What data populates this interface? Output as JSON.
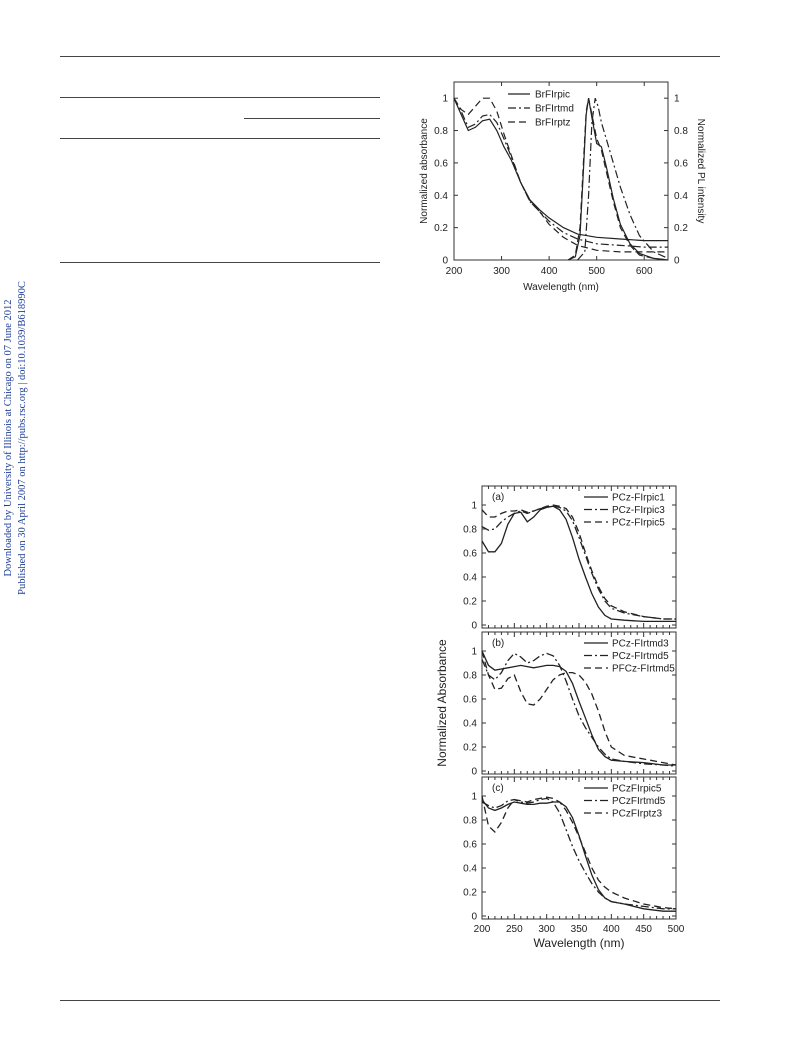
{
  "sidebar": {
    "line1": "Downloaded by University of Illinois at Chicago on 07 June 2012",
    "line2": "Published on 30 April 2007 on http://pubs.rsc.org | doi:10.1039/B618990C"
  },
  "chart_data": [
    {
      "type": "line",
      "title": "",
      "xlabel": "Wavelength (nm)",
      "ylabel": "Normalized absorbance",
      "y2label": "Normalized PL intensity",
      "xlim": [
        200,
        650
      ],
      "ylim": [
        0,
        1.1
      ],
      "xticks": [
        "200",
        "300",
        "400",
        "500",
        "600"
      ],
      "yticks": [
        "0",
        "0.2",
        "0.4",
        "0.6",
        "0.8",
        "1"
      ],
      "y2ticks": [
        "0",
        "0.2",
        "0.4",
        "0.6",
        "0.8",
        "1"
      ],
      "legend_position": "top-center",
      "grid": false,
      "series": [
        {
          "name": "BrFIrpic",
          "dash": "solid",
          "kind": "absorption",
          "x": [
            200,
            215,
            230,
            245,
            260,
            275,
            290,
            305,
            320,
            340,
            360,
            380,
            400,
            430,
            460,
            500,
            550,
            600,
            650
          ],
          "y": [
            1.0,
            0.9,
            0.8,
            0.82,
            0.86,
            0.87,
            0.8,
            0.7,
            0.62,
            0.48,
            0.37,
            0.31,
            0.26,
            0.2,
            0.16,
            0.14,
            0.13,
            0.12,
            0.12
          ]
        },
        {
          "name": "BrFIrtmd",
          "dash": "dashdot",
          "kind": "absorption",
          "x": [
            200,
            215,
            230,
            245,
            260,
            275,
            290,
            305,
            320,
            340,
            360,
            380,
            400,
            430,
            460,
            500,
            550,
            600,
            650
          ],
          "y": [
            1.0,
            0.92,
            0.82,
            0.84,
            0.89,
            0.9,
            0.85,
            0.75,
            0.64,
            0.48,
            0.36,
            0.3,
            0.24,
            0.17,
            0.13,
            0.1,
            0.09,
            0.08,
            0.08
          ]
        },
        {
          "name": "BrFIrptz",
          "dash": "dash",
          "kind": "absorption",
          "x": [
            200,
            215,
            230,
            245,
            260,
            275,
            290,
            305,
            320,
            340,
            360,
            380,
            400,
            430,
            460,
            500,
            550,
            600,
            650
          ],
          "y": [
            1.0,
            0.93,
            0.9,
            0.95,
            1.0,
            1.0,
            0.92,
            0.78,
            0.65,
            0.48,
            0.36,
            0.3,
            0.22,
            0.14,
            0.09,
            0.06,
            0.05,
            0.05,
            0.05
          ]
        },
        {
          "name": "BrFIrpic",
          "dash": "solid",
          "kind": "emission",
          "x": [
            440,
            455,
            465,
            472,
            478,
            483,
            490,
            500,
            510,
            520,
            535,
            550,
            570,
            590,
            620,
            650
          ],
          "y": [
            0,
            0.02,
            0.15,
            0.55,
            0.9,
            1.0,
            0.88,
            0.72,
            0.7,
            0.58,
            0.38,
            0.22,
            0.1,
            0.04,
            0.01,
            0
          ]
        },
        {
          "name": "BrFIrtmd",
          "dash": "dashdot",
          "kind": "emission",
          "x": [
            460,
            475,
            483,
            490,
            497,
            503,
            510,
            520,
            535,
            550,
            570,
            590,
            620,
            650
          ],
          "y": [
            0,
            0.05,
            0.4,
            0.85,
            1.0,
            0.95,
            0.85,
            0.75,
            0.6,
            0.45,
            0.28,
            0.15,
            0.05,
            0.01
          ]
        },
        {
          "name": "BrFIrptz",
          "dash": "dash",
          "kind": "emission",
          "x": [
            440,
            455,
            465,
            472,
            478,
            483,
            490,
            500,
            510,
            520,
            535,
            550,
            570,
            590,
            620,
            650
          ],
          "y": [
            0,
            0.03,
            0.2,
            0.6,
            0.92,
            1.0,
            0.9,
            0.75,
            0.68,
            0.55,
            0.36,
            0.2,
            0.09,
            0.03,
            0.01,
            0
          ]
        }
      ]
    },
    {
      "type": "line",
      "title": "",
      "panels": [
        {
          "label": "(a)",
          "ylabel": "",
          "xlabel": "",
          "xlim": [
            200,
            500
          ],
          "ylim": [
            0,
            1.1
          ],
          "yticks": [
            "0",
            "0.2",
            "0.4",
            "0.6",
            "0.8",
            "1"
          ],
          "series": [
            {
              "name": "PCz-FIrpic1",
              "dash": "solid",
              "x": [
                200,
                210,
                220,
                230,
                240,
                250,
                260,
                270,
                280,
                290,
                300,
                310,
                320,
                330,
                340,
                350,
                360,
                370,
                380,
                390,
                400,
                420,
                450,
                480,
                500
              ],
              "y": [
                0.7,
                0.61,
                0.61,
                0.68,
                0.84,
                0.93,
                0.94,
                0.86,
                0.9,
                0.96,
                0.98,
                0.99,
                0.96,
                0.88,
                0.73,
                0.55,
                0.4,
                0.26,
                0.15,
                0.08,
                0.05,
                0.04,
                0.03,
                0.03,
                0.03
              ]
            },
            {
              "name": "PCz-FIrpic3",
              "dash": "dashdot",
              "x": [
                200,
                210,
                220,
                230,
                240,
                250,
                260,
                270,
                280,
                290,
                300,
                310,
                320,
                330,
                340,
                350,
                360,
                370,
                380,
                390,
                400,
                420,
                450,
                480,
                500
              ],
              "y": [
                0.82,
                0.79,
                0.8,
                0.86,
                0.9,
                0.93,
                0.95,
                0.93,
                0.95,
                0.97,
                0.98,
                0.99,
                0.98,
                0.95,
                0.87,
                0.73,
                0.58,
                0.43,
                0.3,
                0.2,
                0.14,
                0.1,
                0.07,
                0.05,
                0.05
              ]
            },
            {
              "name": "PCz-FIrpic5",
              "dash": "dash",
              "x": [
                200,
                210,
                220,
                230,
                240,
                250,
                260,
                270,
                280,
                290,
                300,
                310,
                320,
                330,
                340,
                350,
                360,
                370,
                380,
                390,
                400,
                420,
                450,
                480,
                500
              ],
              "y": [
                0.96,
                0.9,
                0.9,
                0.93,
                0.95,
                0.95,
                0.96,
                0.94,
                0.95,
                0.97,
                0.99,
                1.0,
                0.99,
                0.97,
                0.9,
                0.77,
                0.6,
                0.45,
                0.32,
                0.22,
                0.16,
                0.11,
                0.07,
                0.05,
                0.05
              ]
            }
          ]
        },
        {
          "label": "(b)",
          "ylabel": "Normalized Absorbance",
          "xlabel": "",
          "xlim": [
            200,
            500
          ],
          "ylim": [
            0,
            1.1
          ],
          "yticks": [
            "0",
            "0.2",
            "0.4",
            "0.6",
            "0.8",
            "1"
          ],
          "series": [
            {
              "name": "PCz-FIrtmd3",
              "dash": "solid",
              "x": [
                200,
                210,
                220,
                230,
                240,
                250,
                260,
                270,
                280,
                290,
                300,
                310,
                320,
                330,
                340,
                350,
                360,
                370,
                380,
                390,
                400,
                420,
                450,
                480,
                500
              ],
              "y": [
                1.0,
                0.88,
                0.84,
                0.85,
                0.86,
                0.87,
                0.88,
                0.87,
                0.86,
                0.87,
                0.88,
                0.88,
                0.87,
                0.83,
                0.73,
                0.58,
                0.44,
                0.3,
                0.18,
                0.12,
                0.09,
                0.08,
                0.07,
                0.05,
                0.05
              ]
            },
            {
              "name": "PCz-FIrtmd5",
              "dash": "dashdot",
              "x": [
                200,
                210,
                220,
                230,
                240,
                250,
                260,
                270,
                280,
                290,
                300,
                310,
                320,
                330,
                340,
                350,
                360,
                370,
                380,
                390,
                400,
                420,
                450,
                480,
                500
              ],
              "y": [
                0.93,
                0.8,
                0.76,
                0.82,
                0.92,
                0.98,
                0.95,
                0.9,
                0.92,
                0.96,
                0.98,
                0.96,
                0.88,
                0.75,
                0.6,
                0.46,
                0.36,
                0.28,
                0.2,
                0.14,
                0.1,
                0.08,
                0.06,
                0.05,
                0.04
              ]
            },
            {
              "name": "PFCz-FIrtmd5",
              "dash": "dash",
              "x": [
                200,
                210,
                220,
                230,
                240,
                250,
                260,
                270,
                280,
                290,
                300,
                310,
                320,
                330,
                340,
                350,
                360,
                370,
                380,
                390,
                400,
                420,
                450,
                480,
                500
              ],
              "y": [
                1.0,
                0.8,
                0.68,
                0.69,
                0.77,
                0.8,
                0.66,
                0.56,
                0.55,
                0.6,
                0.68,
                0.76,
                0.8,
                0.82,
                0.82,
                0.8,
                0.74,
                0.64,
                0.5,
                0.33,
                0.2,
                0.13,
                0.1,
                0.07,
                0.05
              ]
            }
          ]
        },
        {
          "label": "(c)",
          "ylabel": "",
          "xlabel": "Wavelength (nm)",
          "xlim": [
            200,
            500
          ],
          "ylim": [
            0,
            1.1
          ],
          "xticks": [
            "200",
            "250",
            "300",
            "350",
            "400",
            "450",
            "500"
          ],
          "yticks": [
            "0",
            "0.2",
            "0.4",
            "0.6",
            "0.8",
            "1"
          ],
          "series": [
            {
              "name": "PCzFIrpic5",
              "dash": "solid",
              "x": [
                200,
                210,
                220,
                230,
                240,
                250,
                260,
                270,
                280,
                290,
                300,
                310,
                320,
                330,
                340,
                350,
                360,
                370,
                380,
                390,
                400,
                420,
                450,
                480,
                500
              ],
              "y": [
                0.97,
                0.9,
                0.88,
                0.9,
                0.93,
                0.95,
                0.94,
                0.93,
                0.93,
                0.94,
                0.94,
                0.95,
                0.95,
                0.91,
                0.82,
                0.67,
                0.5,
                0.34,
                0.22,
                0.15,
                0.12,
                0.1,
                0.06,
                0.04,
                0.04
              ]
            },
            {
              "name": "PCzFIrtmd5",
              "dash": "dashdot",
              "x": [
                200,
                210,
                220,
                230,
                240,
                250,
                260,
                270,
                280,
                290,
                300,
                310,
                320,
                330,
                340,
                350,
                360,
                370,
                380,
                390,
                400,
                420,
                450,
                480,
                500
              ],
              "y": [
                0.95,
                0.92,
                0.9,
                0.92,
                0.96,
                0.97,
                0.95,
                0.94,
                0.95,
                0.97,
                0.98,
                0.95,
                0.86,
                0.72,
                0.58,
                0.46,
                0.36,
                0.27,
                0.2,
                0.15,
                0.12,
                0.1,
                0.08,
                0.06,
                0.06
              ]
            },
            {
              "name": "PCzFIrptz3",
              "dash": "dash",
              "x": [
                200,
                210,
                220,
                230,
                240,
                250,
                260,
                270,
                280,
                290,
                300,
                310,
                320,
                330,
                340,
                350,
                360,
                370,
                380,
                390,
                400,
                420,
                450,
                480,
                500
              ],
              "y": [
                1.0,
                0.75,
                0.7,
                0.78,
                0.9,
                0.97,
                0.96,
                0.95,
                0.97,
                0.98,
                0.99,
                0.98,
                0.95,
                0.88,
                0.78,
                0.66,
                0.53,
                0.4,
                0.3,
                0.24,
                0.2,
                0.15,
                0.1,
                0.07,
                0.06
              ]
            }
          ]
        }
      ]
    }
  ]
}
